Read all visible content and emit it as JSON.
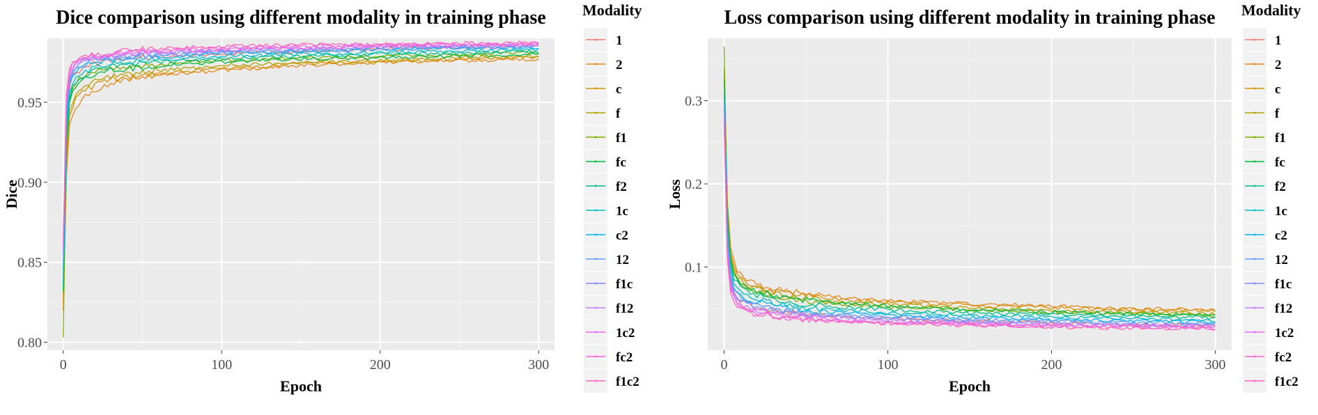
{
  "chart_data": [
    {
      "type": "line",
      "title": "Dice comparison using different modality in training phase",
      "xlabel": "Epoch",
      "ylabel": "Dice",
      "xlim": [
        -10,
        310
      ],
      "ylim": [
        0.795,
        0.99
      ],
      "xticks": [
        0,
        100,
        200,
        300
      ],
      "xtick_labels": [
        "0",
        "100",
        "200",
        "300"
      ],
      "yticks": [
        0.8,
        0.85,
        0.9,
        0.95
      ],
      "ytick_labels": [
        "0.80",
        "0.85",
        "0.90",
        "0.95"
      ],
      "grid": true,
      "legend_title": "Modality",
      "legend_position": "right",
      "epochs": [
        0,
        1,
        2,
        3,
        4,
        5,
        7,
        10,
        15,
        20,
        30,
        50,
        75,
        100,
        150,
        200,
        250,
        300
      ],
      "series": [
        {
          "name": "1",
          "color": "#F8766D",
          "values": [
            0.84,
            0.9,
            0.935,
            0.952,
            0.96,
            0.965,
            0.968,
            0.97,
            0.972,
            0.974,
            0.976,
            0.978,
            0.979,
            0.98,
            0.982,
            0.983,
            0.984,
            0.985
          ]
        },
        {
          "name": "2",
          "color": "#E7861B",
          "values": [
            0.82,
            0.87,
            0.905,
            0.925,
            0.935,
            0.94,
            0.945,
            0.95,
            0.955,
            0.958,
            0.962,
            0.966,
            0.968,
            0.97,
            0.973,
            0.975,
            0.976,
            0.977
          ]
        },
        {
          "name": "c",
          "color": "#D39200",
          "values": [
            0.825,
            0.875,
            0.91,
            0.93,
            0.94,
            0.945,
            0.95,
            0.955,
            0.958,
            0.961,
            0.964,
            0.967,
            0.969,
            0.971,
            0.974,
            0.975,
            0.977,
            0.978
          ]
        },
        {
          "name": "f",
          "color": "#B79F00",
          "values": [
            0.83,
            0.88,
            0.915,
            0.935,
            0.944,
            0.948,
            0.953,
            0.957,
            0.96,
            0.963,
            0.966,
            0.969,
            0.971,
            0.973,
            0.975,
            0.976,
            0.978,
            0.979
          ]
        },
        {
          "name": "f1",
          "color": "#7CAE00",
          "values": [
            0.803,
            0.88,
            0.925,
            0.945,
            0.953,
            0.957,
            0.961,
            0.964,
            0.967,
            0.969,
            0.971,
            0.973,
            0.975,
            0.976,
            0.978,
            0.979,
            0.98,
            0.981
          ]
        },
        {
          "name": "fc",
          "color": "#00BA38",
          "values": [
            0.832,
            0.888,
            0.922,
            0.942,
            0.95,
            0.955,
            0.959,
            0.962,
            0.965,
            0.967,
            0.97,
            0.972,
            0.974,
            0.975,
            0.977,
            0.978,
            0.979,
            0.98
          ]
        },
        {
          "name": "f2",
          "color": "#00C08B",
          "values": [
            0.835,
            0.892,
            0.926,
            0.945,
            0.953,
            0.958,
            0.962,
            0.965,
            0.968,
            0.97,
            0.972,
            0.974,
            0.976,
            0.977,
            0.979,
            0.98,
            0.981,
            0.982
          ]
        },
        {
          "name": "1c",
          "color": "#00BFC4",
          "values": [
            0.838,
            0.896,
            0.93,
            0.949,
            0.957,
            0.961,
            0.965,
            0.968,
            0.97,
            0.972,
            0.974,
            0.976,
            0.977,
            0.979,
            0.98,
            0.981,
            0.982,
            0.983
          ]
        },
        {
          "name": "c2",
          "color": "#00B4F0",
          "values": [
            0.845,
            0.905,
            0.938,
            0.954,
            0.961,
            0.965,
            0.968,
            0.971,
            0.973,
            0.975,
            0.977,
            0.978,
            0.979,
            0.981,
            0.982,
            0.983,
            0.984,
            0.984
          ]
        },
        {
          "name": "12",
          "color": "#619CFF",
          "values": [
            0.85,
            0.91,
            0.942,
            0.957,
            0.963,
            0.967,
            0.97,
            0.972,
            0.974,
            0.976,
            0.977,
            0.979,
            0.98,
            0.981,
            0.982,
            0.983,
            0.984,
            0.985
          ]
        },
        {
          "name": "f1c",
          "color": "#7B8AFF",
          "values": [
            0.855,
            0.915,
            0.946,
            0.96,
            0.966,
            0.969,
            0.972,
            0.974,
            0.976,
            0.977,
            0.978,
            0.98,
            0.981,
            0.982,
            0.983,
            0.984,
            0.985,
            0.985
          ]
        },
        {
          "name": "f12",
          "color": "#C77CFF",
          "values": [
            0.858,
            0.918,
            0.948,
            0.961,
            0.967,
            0.97,
            0.973,
            0.975,
            0.977,
            0.978,
            0.979,
            0.981,
            0.982,
            0.983,
            0.984,
            0.985,
            0.985,
            0.986
          ]
        },
        {
          "name": "1c2",
          "color": "#E76BF3",
          "values": [
            0.86,
            0.92,
            0.95,
            0.963,
            0.968,
            0.971,
            0.974,
            0.976,
            0.977,
            0.978,
            0.98,
            0.981,
            0.982,
            0.983,
            0.984,
            0.985,
            0.986,
            0.986
          ]
        },
        {
          "name": "fc2",
          "color": "#FA62DB",
          "values": [
            0.862,
            0.922,
            0.952,
            0.964,
            0.969,
            0.972,
            0.975,
            0.977,
            0.978,
            0.979,
            0.98,
            0.982,
            0.983,
            0.984,
            0.985,
            0.986,
            0.986,
            0.987
          ]
        },
        {
          "name": "f1c2",
          "color": "#FF62BC",
          "values": [
            0.865,
            0.925,
            0.954,
            0.966,
            0.97,
            0.973,
            0.976,
            0.978,
            0.979,
            0.98,
            0.981,
            0.983,
            0.984,
            0.985,
            0.986,
            0.986,
            0.987,
            0.987
          ]
        }
      ]
    },
    {
      "type": "line",
      "title": "Loss comparison using different modality in training phase",
      "xlabel": "Epoch",
      "ylabel": "Loss",
      "xlim": [
        -10,
        310
      ],
      "ylim": [
        0.0,
        0.375
      ],
      "xticks": [
        0,
        100,
        200,
        300
      ],
      "xtick_labels": [
        "0",
        "100",
        "200",
        "300"
      ],
      "yticks": [
        0.1,
        0.2,
        0.3
      ],
      "ytick_labels": [
        "0.1",
        "0.2",
        "0.3"
      ],
      "grid": true,
      "legend_title": "Modality",
      "legend_position": "right",
      "epochs": [
        0,
        1,
        2,
        3,
        4,
        5,
        7,
        10,
        15,
        20,
        30,
        50,
        75,
        100,
        150,
        200,
        250,
        300
      ],
      "series": [
        {
          "name": "1",
          "color": "#F8766D",
          "values": [
            0.3,
            0.2,
            0.13,
            0.1,
            0.085,
            0.075,
            0.066,
            0.06,
            0.055,
            0.052,
            0.048,
            0.043,
            0.04,
            0.038,
            0.035,
            0.033,
            0.031,
            0.03
          ]
        },
        {
          "name": "2",
          "color": "#E7861B",
          "values": [
            0.34,
            0.24,
            0.18,
            0.145,
            0.125,
            0.112,
            0.1,
            0.092,
            0.085,
            0.08,
            0.074,
            0.068,
            0.063,
            0.06,
            0.056,
            0.053,
            0.05,
            0.048
          ]
        },
        {
          "name": "c",
          "color": "#D39200",
          "values": [
            0.335,
            0.235,
            0.175,
            0.14,
            0.12,
            0.108,
            0.096,
            0.088,
            0.081,
            0.077,
            0.071,
            0.065,
            0.061,
            0.058,
            0.054,
            0.051,
            0.049,
            0.047
          ]
        },
        {
          "name": "f",
          "color": "#B79F00",
          "values": [
            0.33,
            0.23,
            0.168,
            0.134,
            0.115,
            0.103,
            0.092,
            0.084,
            0.078,
            0.074,
            0.068,
            0.062,
            0.058,
            0.055,
            0.051,
            0.048,
            0.046,
            0.044
          ]
        },
        {
          "name": "f1",
          "color": "#7CAE00",
          "values": [
            0.365,
            0.23,
            0.16,
            0.126,
            0.108,
            0.097,
            0.087,
            0.08,
            0.074,
            0.07,
            0.065,
            0.059,
            0.055,
            0.052,
            0.049,
            0.046,
            0.044,
            0.042
          ]
        },
        {
          "name": "fc",
          "color": "#00BA38",
          "values": [
            0.325,
            0.222,
            0.16,
            0.128,
            0.11,
            0.099,
            0.089,
            0.081,
            0.075,
            0.071,
            0.066,
            0.06,
            0.056,
            0.053,
            0.049,
            0.046,
            0.044,
            0.042
          ]
        },
        {
          "name": "f2",
          "color": "#00C08B",
          "values": [
            0.32,
            0.215,
            0.152,
            0.12,
            0.103,
            0.093,
            0.083,
            0.076,
            0.07,
            0.066,
            0.061,
            0.055,
            0.051,
            0.049,
            0.045,
            0.043,
            0.041,
            0.039
          ]
        },
        {
          "name": "1c",
          "color": "#00BFC4",
          "values": [
            0.312,
            0.208,
            0.145,
            0.113,
            0.097,
            0.087,
            0.078,
            0.071,
            0.065,
            0.062,
            0.057,
            0.051,
            0.048,
            0.045,
            0.042,
            0.04,
            0.038,
            0.036
          ]
        },
        {
          "name": "c2",
          "color": "#00B4F0",
          "values": [
            0.305,
            0.2,
            0.138,
            0.107,
            0.091,
            0.082,
            0.073,
            0.066,
            0.061,
            0.058,
            0.053,
            0.048,
            0.045,
            0.042,
            0.039,
            0.037,
            0.035,
            0.034
          ]
        },
        {
          "name": "12",
          "color": "#619CFF",
          "values": [
            0.3,
            0.195,
            0.133,
            0.103,
            0.087,
            0.078,
            0.07,
            0.063,
            0.058,
            0.055,
            0.05,
            0.045,
            0.042,
            0.04,
            0.037,
            0.035,
            0.033,
            0.032
          ]
        },
        {
          "name": "f1c",
          "color": "#7B8AFF",
          "values": [
            0.29,
            0.188,
            0.127,
            0.098,
            0.083,
            0.074,
            0.066,
            0.06,
            0.055,
            0.052,
            0.048,
            0.043,
            0.04,
            0.038,
            0.035,
            0.033,
            0.031,
            0.03
          ]
        },
        {
          "name": "f12",
          "color": "#C77CFF",
          "values": [
            0.285,
            0.183,
            0.122,
            0.094,
            0.079,
            0.071,
            0.063,
            0.057,
            0.052,
            0.049,
            0.045,
            0.041,
            0.038,
            0.036,
            0.033,
            0.031,
            0.03,
            0.029
          ]
        },
        {
          "name": "1c2",
          "color": "#E76BF3",
          "values": [
            0.28,
            0.178,
            0.118,
            0.09,
            0.076,
            0.068,
            0.06,
            0.054,
            0.05,
            0.047,
            0.043,
            0.039,
            0.036,
            0.034,
            0.032,
            0.03,
            0.029,
            0.028
          ]
        },
        {
          "name": "fc2",
          "color": "#FA62DB",
          "values": [
            0.275,
            0.173,
            0.114,
            0.087,
            0.073,
            0.065,
            0.058,
            0.052,
            0.048,
            0.045,
            0.041,
            0.037,
            0.035,
            0.033,
            0.031,
            0.029,
            0.028,
            0.027
          ]
        },
        {
          "name": "f1c2",
          "color": "#FF62BC",
          "values": [
            0.27,
            0.168,
            0.11,
            0.084,
            0.07,
            0.062,
            0.055,
            0.05,
            0.046,
            0.043,
            0.04,
            0.036,
            0.034,
            0.032,
            0.03,
            0.028,
            0.027,
            0.026
          ]
        }
      ]
    }
  ]
}
